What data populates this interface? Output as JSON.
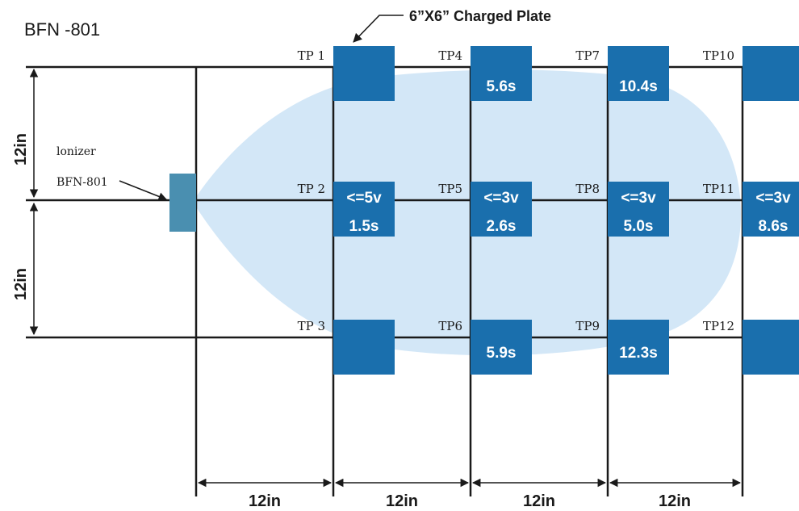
{
  "model_title": "BFN -801",
  "callout": "6”X6” Charged Plate",
  "ionizer": {
    "line1": "lonizer",
    "line2": "BFN-801"
  },
  "dimensions": {
    "vertical": [
      "12in",
      "12in"
    ],
    "horizontal": [
      "12in",
      "12in",
      "12in",
      "12in"
    ]
  },
  "test_points": [
    {
      "id": "TP 1",
      "col": 0,
      "row": 0,
      "voltage": "",
      "time": ""
    },
    {
      "id": "TP 2",
      "col": 0,
      "row": 1,
      "voltage": "<=5v",
      "time": "1.5s"
    },
    {
      "id": "TP 3",
      "col": 0,
      "row": 2,
      "voltage": "",
      "time": ""
    },
    {
      "id": "TP4",
      "col": 1,
      "row": 0,
      "voltage": "",
      "time": "5.6s"
    },
    {
      "id": "TP5",
      "col": 1,
      "row": 1,
      "voltage": "<=3v",
      "time": "2.6s"
    },
    {
      "id": "TP6",
      "col": 1,
      "row": 2,
      "voltage": "",
      "time": "5.9s"
    },
    {
      "id": "TP7",
      "col": 2,
      "row": 0,
      "voltage": "",
      "time": "10.4s"
    },
    {
      "id": "TP8",
      "col": 2,
      "row": 1,
      "voltage": "<=3v",
      "time": "5.0s"
    },
    {
      "id": "TP9",
      "col": 2,
      "row": 2,
      "voltage": "",
      "time": "12.3s"
    },
    {
      "id": "TP10",
      "col": 3,
      "row": 0,
      "voltage": "",
      "time": ""
    },
    {
      "id": "TP11",
      "col": 3,
      "row": 1,
      "voltage": "<=3v",
      "time": "8.6s"
    },
    {
      "id": "TP12",
      "col": 3,
      "row": 2,
      "voltage": "",
      "time": ""
    }
  ],
  "colors": {
    "plate": "#1a6fad",
    "airflow": "#d3e7f7",
    "ionizer": "#4a8fb0",
    "line": "#1a1a1a",
    "plate_text": "#ffffff"
  }
}
